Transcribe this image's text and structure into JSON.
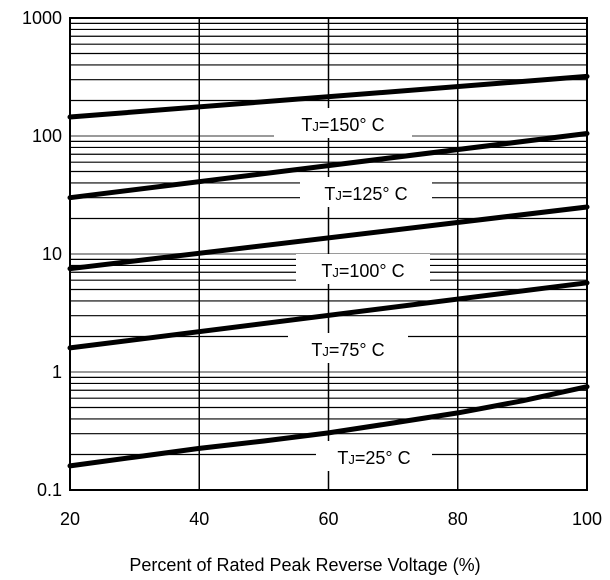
{
  "chart_data": {
    "type": "line",
    "title": "",
    "xlabel": "Percent of Rated Peak Reverse Voltage (%)",
    "ylabel": "",
    "xlim": [
      20,
      100
    ],
    "ylim": [
      0.1,
      1000
    ],
    "y_scale": "log",
    "grid": true,
    "x_ticks": [
      20,
      40,
      60,
      80,
      100
    ],
    "x_tick_labels": [
      "20",
      "40",
      "60",
      "80",
      "100"
    ],
    "y_ticks": [
      0.1,
      1,
      10,
      100,
      1000
    ],
    "y_tick_labels": [
      "0.1",
      "1",
      "10",
      "100",
      "1000"
    ],
    "line_color": "#000000",
    "series": [
      {
        "name": "TJ=150° C",
        "label_prefix": "T",
        "label_sub": "J",
        "label_rest": "=150° C",
        "x": [
          20,
          100
        ],
        "y": [
          145,
          320
        ]
      },
      {
        "name": "TJ=125° C",
        "label_prefix": "T",
        "label_sub": "J",
        "label_rest": "=125° C",
        "x": [
          20,
          100
        ],
        "y": [
          30,
          105
        ]
      },
      {
        "name": "TJ=100° C",
        "label_prefix": "T",
        "label_sub": "J",
        "label_rest": "=100° C",
        "x": [
          20,
          100
        ],
        "y": [
          7.5,
          25
        ]
      },
      {
        "name": "TJ=75° C",
        "label_prefix": "T",
        "label_sub": "J",
        "label_rest": "=75° C",
        "x": [
          20,
          100
        ],
        "y": [
          1.6,
          5.7
        ]
      },
      {
        "name": "TJ=25° C",
        "label_prefix": "T",
        "label_sub": "J",
        "label_rest": "=25° C",
        "x": [
          20,
          30,
          40,
          50,
          60,
          70,
          80,
          90,
          100
        ],
        "y": [
          0.16,
          0.19,
          0.225,
          0.26,
          0.305,
          0.37,
          0.45,
          0.57,
          0.75
        ]
      }
    ]
  }
}
